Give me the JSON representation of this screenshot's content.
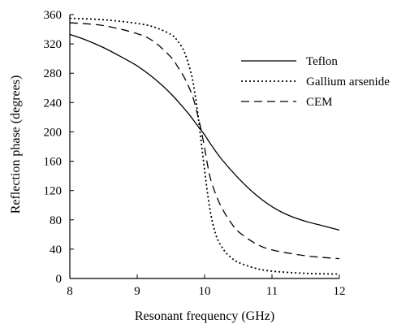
{
  "chart_data": {
    "type": "line",
    "xlabel": "Resonant frequency (GHz)",
    "ylabel": "Reflection phase (degrees)",
    "xlim": [
      8,
      12
    ],
    "ylim": [
      0,
      360
    ],
    "x_ticks": [
      "8",
      "9",
      "10",
      "11",
      "12"
    ],
    "y_ticks": [
      "0",
      "40",
      "80",
      "120",
      "160",
      "200",
      "240",
      "280",
      "320",
      "360"
    ],
    "grid": false,
    "legend_position": "top-right",
    "series": [
      {
        "name": "Teflon",
        "style": "solid",
        "color": "#000000",
        "x": [
          8,
          8.25,
          8.5,
          8.75,
          9,
          9.25,
          9.5,
          9.75,
          9.9,
          10,
          10.1,
          10.25,
          10.5,
          10.75,
          11,
          11.25,
          11.5,
          11.75,
          12
        ],
        "y": [
          333,
          325,
          315,
          303,
          290,
          273,
          252,
          226,
          208,
          196,
          182,
          163,
          137,
          115,
          98,
          86,
          78,
          72,
          66
        ]
      },
      {
        "name": "Gallium arsenide",
        "style": "dotted",
        "color": "#000000",
        "x": [
          8,
          8.5,
          9,
          9.25,
          9.5,
          9.6,
          9.7,
          9.8,
          9.85,
          9.9,
          9.95,
          10,
          10.05,
          10.1,
          10.15,
          10.2,
          10.3,
          10.4,
          10.5,
          10.75,
          11,
          11.5,
          12
        ],
        "y": [
          355,
          353,
          348,
          343,
          333,
          324,
          309,
          280,
          256,
          224,
          186,
          148,
          112,
          84,
          65,
          52,
          37,
          28,
          22,
          14,
          10,
          7,
          6
        ]
      },
      {
        "name": "CEM",
        "style": "dashed",
        "color": "#000000",
        "x": [
          8,
          8.5,
          9,
          9.25,
          9.5,
          9.6,
          9.7,
          9.8,
          9.85,
          9.9,
          9.95,
          10,
          10.05,
          10.1,
          10.2,
          10.3,
          10.4,
          10.5,
          10.75,
          11,
          11.5,
          12
        ],
        "y": [
          349,
          345,
          334,
          323,
          302,
          289,
          274,
          254,
          240,
          222,
          202,
          178,
          152,
          132,
          107,
          89,
          75,
          64,
          48,
          39,
          31,
          27
        ]
      }
    ]
  }
}
